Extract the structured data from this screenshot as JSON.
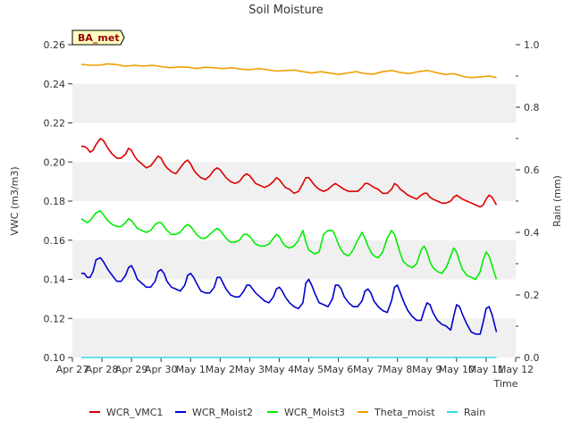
{
  "chart_data": {
    "type": "line",
    "title": "Soil Moisture",
    "xlabel": "Time",
    "ylabel": "VWC (m3/m3)",
    "y2label": "Rain (mm)",
    "badge": "BA_met",
    "ylim": [
      0.1,
      0.26
    ],
    "y2lim": [
      0.0,
      1.0
    ],
    "y_ticks": [
      "0.10",
      "0.12",
      "0.14",
      "0.16",
      "0.18",
      "0.20",
      "0.22",
      "0.24",
      "0.26"
    ],
    "y2_ticks": [
      "0.0",
      "0.2",
      "0.4",
      "0.6",
      "0.8",
      "1.0"
    ],
    "x_range": [
      0,
      15
    ],
    "x_ticks": [
      "Apr 27",
      "Apr 28",
      "Apr 29",
      "Apr 30",
      "May 1",
      "May 2",
      "May 3",
      "May 4",
      "May 5",
      "May 6",
      "May 7",
      "May 8",
      "May 9",
      "May 10",
      "May 11",
      "May 12"
    ],
    "legend_position": "bottom",
    "colors": {
      "WCR_VMC1": "#dd0000",
      "WCR_Moist2": "#0000cc",
      "WCR_Moist3": "#00ee00",
      "Theta_moist": "#f0a000",
      "Rain": "#33dddd",
      "band": "#f0f0f0",
      "badge_bg": "#ffffc0"
    },
    "series": [
      {
        "name": "WCR_VMC1",
        "axis": "left",
        "x": [
          0.3,
          0.4,
          0.5,
          0.6,
          0.7,
          0.8,
          0.95,
          1.05,
          1.2,
          1.35,
          1.5,
          1.65,
          1.8,
          1.9,
          2.0,
          2.1,
          2.2,
          2.35,
          2.5,
          2.65,
          2.8,
          2.9,
          3.0,
          3.1,
          3.2,
          3.35,
          3.5,
          3.65,
          3.8,
          3.9,
          4.0,
          4.1,
          4.2,
          4.35,
          4.5,
          4.65,
          4.8,
          4.9,
          5.0,
          5.1,
          5.2,
          5.35,
          5.5,
          5.65,
          5.8,
          5.9,
          6.0,
          6.1,
          6.2,
          6.35,
          6.5,
          6.65,
          6.8,
          6.9,
          7.0,
          7.1,
          7.2,
          7.35,
          7.5,
          7.65,
          7.8,
          7.9,
          8.0,
          8.1,
          8.2,
          8.35,
          8.5,
          8.65,
          8.8,
          8.9,
          9.0,
          9.1,
          9.2,
          9.35,
          9.5,
          9.65,
          9.8,
          9.9,
          10.0,
          10.1,
          10.2,
          10.35,
          10.5,
          10.65,
          10.8,
          10.9,
          11.0,
          11.1,
          11.2,
          11.35,
          11.5,
          11.65,
          11.8,
          11.9,
          12.0,
          12.1,
          12.2,
          12.35,
          12.5,
          12.65,
          12.8,
          12.9,
          13.0,
          13.1,
          13.2,
          13.35,
          13.5,
          13.65,
          13.8,
          13.9,
          14.0,
          14.1,
          14.2,
          14.35
        ],
        "values": [
          0.208,
          0.208,
          0.207,
          0.205,
          0.206,
          0.209,
          0.212,
          0.211,
          0.207,
          0.204,
          0.202,
          0.202,
          0.204,
          0.207,
          0.206,
          0.203,
          0.201,
          0.199,
          0.197,
          0.198,
          0.201,
          0.203,
          0.202,
          0.199,
          0.197,
          0.195,
          0.194,
          0.197,
          0.2,
          0.201,
          0.199,
          0.196,
          0.194,
          0.192,
          0.191,
          0.193,
          0.196,
          0.197,
          0.196,
          0.194,
          0.192,
          0.19,
          0.189,
          0.19,
          0.193,
          0.194,
          0.193,
          0.191,
          0.189,
          0.188,
          0.187,
          0.188,
          0.19,
          0.192,
          0.191,
          0.189,
          0.187,
          0.186,
          0.184,
          0.185,
          0.189,
          0.192,
          0.192,
          0.19,
          0.188,
          0.186,
          0.185,
          0.186,
          0.188,
          0.189,
          0.188,
          0.187,
          0.186,
          0.185,
          0.185,
          0.185,
          0.187,
          0.189,
          0.189,
          0.188,
          0.187,
          0.186,
          0.184,
          0.184,
          0.186,
          0.189,
          0.188,
          0.186,
          0.185,
          0.183,
          0.182,
          0.181,
          0.183,
          0.184,
          0.184,
          0.182,
          0.181,
          0.18,
          0.179,
          0.179,
          0.18,
          0.182,
          0.183,
          0.182,
          0.181,
          0.18,
          0.179,
          0.178,
          0.177,
          0.178,
          0.181,
          0.183,
          0.182,
          0.178
        ]
      },
      {
        "name": "WCR_Moist2",
        "axis": "left",
        "x": [
          0.3,
          0.4,
          0.5,
          0.6,
          0.7,
          0.8,
          0.95,
          1.05,
          1.2,
          1.35,
          1.5,
          1.65,
          1.8,
          1.9,
          2.0,
          2.1,
          2.2,
          2.35,
          2.5,
          2.65,
          2.8,
          2.9,
          3.0,
          3.1,
          3.2,
          3.35,
          3.5,
          3.65,
          3.8,
          3.9,
          4.0,
          4.1,
          4.2,
          4.35,
          4.5,
          4.65,
          4.8,
          4.9,
          5.0,
          5.1,
          5.2,
          5.35,
          5.5,
          5.65,
          5.8,
          5.9,
          6.0,
          6.1,
          6.2,
          6.35,
          6.5,
          6.65,
          6.8,
          6.9,
          7.0,
          7.1,
          7.2,
          7.35,
          7.5,
          7.65,
          7.8,
          7.9,
          8.0,
          8.1,
          8.2,
          8.35,
          8.5,
          8.65,
          8.8,
          8.9,
          9.0,
          9.1,
          9.2,
          9.35,
          9.5,
          9.65,
          9.8,
          9.9,
          10.0,
          10.1,
          10.2,
          10.35,
          10.5,
          10.65,
          10.8,
          10.9,
          11.0,
          11.1,
          11.2,
          11.35,
          11.5,
          11.65,
          11.8,
          11.9,
          12.0,
          12.1,
          12.2,
          12.35,
          12.5,
          12.65,
          12.8,
          12.9,
          13.0,
          13.1,
          13.2,
          13.35,
          13.5,
          13.65,
          13.8,
          13.9,
          14.0,
          14.1,
          14.2,
          14.35
        ],
        "values": [
          0.143,
          0.143,
          0.141,
          0.141,
          0.144,
          0.15,
          0.151,
          0.149,
          0.145,
          0.142,
          0.139,
          0.139,
          0.142,
          0.146,
          0.147,
          0.144,
          0.14,
          0.138,
          0.136,
          0.136,
          0.139,
          0.144,
          0.145,
          0.143,
          0.139,
          0.136,
          0.135,
          0.134,
          0.137,
          0.142,
          0.143,
          0.141,
          0.138,
          0.134,
          0.133,
          0.133,
          0.136,
          0.141,
          0.141,
          0.138,
          0.135,
          0.132,
          0.131,
          0.131,
          0.134,
          0.137,
          0.137,
          0.135,
          0.133,
          0.131,
          0.129,
          0.128,
          0.131,
          0.135,
          0.136,
          0.134,
          0.131,
          0.128,
          0.126,
          0.125,
          0.128,
          0.138,
          0.14,
          0.137,
          0.133,
          0.128,
          0.127,
          0.126,
          0.13,
          0.137,
          0.137,
          0.135,
          0.131,
          0.128,
          0.126,
          0.126,
          0.129,
          0.134,
          0.135,
          0.133,
          0.129,
          0.126,
          0.124,
          0.123,
          0.129,
          0.136,
          0.137,
          0.133,
          0.129,
          0.124,
          0.121,
          0.119,
          0.119,
          0.124,
          0.128,
          0.127,
          0.123,
          0.119,
          0.117,
          0.116,
          0.114,
          0.121,
          0.127,
          0.126,
          0.122,
          0.117,
          0.113,
          0.112,
          0.112,
          0.118,
          0.125,
          0.126,
          0.122,
          0.113
        ]
      },
      {
        "name": "WCR_Moist3",
        "axis": "left",
        "x": [
          0.3,
          0.4,
          0.5,
          0.6,
          0.7,
          0.8,
          0.95,
          1.05,
          1.2,
          1.35,
          1.5,
          1.65,
          1.8,
          1.9,
          2.0,
          2.1,
          2.2,
          2.35,
          2.5,
          2.65,
          2.8,
          2.9,
          3.0,
          3.1,
          3.2,
          3.35,
          3.5,
          3.65,
          3.8,
          3.9,
          4.0,
          4.1,
          4.2,
          4.35,
          4.5,
          4.65,
          4.8,
          4.9,
          5.0,
          5.1,
          5.2,
          5.35,
          5.5,
          5.65,
          5.8,
          5.9,
          6.0,
          6.1,
          6.2,
          6.35,
          6.5,
          6.65,
          6.8,
          6.9,
          7.0,
          7.1,
          7.2,
          7.35,
          7.5,
          7.65,
          7.8,
          7.9,
          8.0,
          8.1,
          8.2,
          8.35,
          8.5,
          8.65,
          8.8,
          8.9,
          9.0,
          9.1,
          9.2,
          9.35,
          9.5,
          9.65,
          9.8,
          9.9,
          10.0,
          10.1,
          10.2,
          10.35,
          10.5,
          10.65,
          10.8,
          10.9,
          11.0,
          11.1,
          11.2,
          11.35,
          11.5,
          11.65,
          11.8,
          11.9,
          12.0,
          12.1,
          12.2,
          12.35,
          12.5,
          12.65,
          12.8,
          12.9,
          13.0,
          13.1,
          13.2,
          13.35,
          13.5,
          13.65,
          13.8,
          13.9,
          14.0,
          14.1,
          14.2,
          14.35
        ],
        "values": [
          0.171,
          0.17,
          0.169,
          0.17,
          0.172,
          0.174,
          0.175,
          0.173,
          0.17,
          0.168,
          0.167,
          0.167,
          0.169,
          0.171,
          0.17,
          0.168,
          0.166,
          0.165,
          0.164,
          0.165,
          0.168,
          0.169,
          0.169,
          0.167,
          0.165,
          0.163,
          0.163,
          0.164,
          0.167,
          0.168,
          0.167,
          0.165,
          0.163,
          0.161,
          0.161,
          0.163,
          0.165,
          0.166,
          0.165,
          0.163,
          0.161,
          0.159,
          0.159,
          0.16,
          0.163,
          0.163,
          0.162,
          0.16,
          0.158,
          0.157,
          0.157,
          0.158,
          0.161,
          0.163,
          0.162,
          0.159,
          0.157,
          0.156,
          0.157,
          0.16,
          0.165,
          0.159,
          0.155,
          0.154,
          0.153,
          0.154,
          0.163,
          0.165,
          0.165,
          0.162,
          0.158,
          0.155,
          0.153,
          0.152,
          0.155,
          0.16,
          0.164,
          0.161,
          0.157,
          0.154,
          0.152,
          0.151,
          0.154,
          0.161,
          0.165,
          0.163,
          0.158,
          0.153,
          0.149,
          0.147,
          0.146,
          0.148,
          0.155,
          0.157,
          0.154,
          0.149,
          0.146,
          0.144,
          0.143,
          0.146,
          0.152,
          0.156,
          0.154,
          0.149,
          0.145,
          0.142,
          0.141,
          0.14,
          0.144,
          0.15,
          0.154,
          0.152,
          0.147,
          0.14
        ]
      },
      {
        "name": "Theta_moist",
        "axis": "left",
        "x": [
          0.3,
          0.6,
          0.9,
          1.2,
          1.5,
          1.8,
          2.1,
          2.4,
          2.7,
          3.0,
          3.3,
          3.6,
          3.9,
          4.2,
          4.5,
          4.8,
          5.1,
          5.4,
          5.7,
          6.0,
          6.3,
          6.6,
          6.9,
          7.2,
          7.5,
          7.8,
          8.1,
          8.4,
          8.7,
          9.0,
          9.3,
          9.6,
          9.9,
          10.2,
          10.5,
          10.8,
          11.1,
          11.4,
          11.7,
          12.0,
          12.3,
          12.6,
          12.9,
          13.2,
          13.5,
          13.8,
          14.1,
          14.35
        ],
        "values": [
          0.25,
          0.2495,
          0.2495,
          0.2502,
          0.2498,
          0.249,
          0.2495,
          0.249,
          0.2495,
          0.2488,
          0.2482,
          0.2486,
          0.2485,
          0.2478,
          0.2485,
          0.2482,
          0.2478,
          0.2482,
          0.2475,
          0.2472,
          0.2478,
          0.2472,
          0.2465,
          0.2468,
          0.247,
          0.2462,
          0.2455,
          0.2462,
          0.2455,
          0.2448,
          0.2455,
          0.2462,
          0.2452,
          0.245,
          0.2462,
          0.2468,
          0.2458,
          0.2452,
          0.2462,
          0.2468,
          0.2458,
          0.2448,
          0.2452,
          0.2438,
          0.2432,
          0.2435,
          0.244,
          0.2432
        ]
      },
      {
        "name": "Rain",
        "axis": "right",
        "x": [
          0.3,
          14.35
        ],
        "values": [
          0.0,
          0.0
        ]
      }
    ]
  }
}
